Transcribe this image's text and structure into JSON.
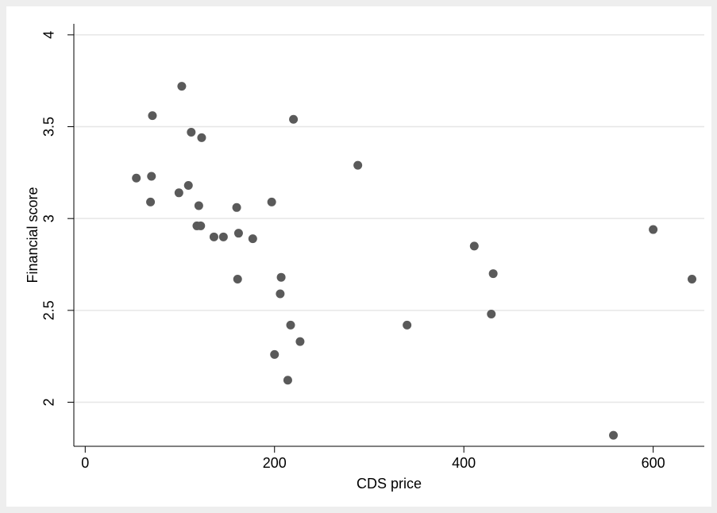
{
  "chart_data": {
    "type": "scatter",
    "x_label": "CDS price",
    "y_label": "Financial score",
    "x": [
      102,
      71,
      112,
      123,
      220,
      288,
      54,
      70,
      109,
      99,
      69,
      120,
      197,
      160,
      118,
      122,
      136,
      146,
      162,
      177,
      161,
      207,
      206,
      217,
      227,
      200,
      214,
      340,
      411,
      431,
      429,
      600,
      641,
      558
    ],
    "values": [
      3.72,
      3.56,
      3.47,
      3.44,
      3.54,
      3.29,
      3.22,
      3.23,
      3.18,
      3.14,
      3.09,
      3.07,
      3.09,
      3.06,
      2.96,
      2.96,
      2.9,
      2.9,
      2.92,
      2.89,
      2.67,
      2.68,
      2.59,
      2.42,
      2.33,
      2.26,
      2.12,
      2.42,
      2.85,
      2.7,
      2.48,
      2.94,
      2.67,
      1.82
    ],
    "color": "#5a5a5a",
    "xlim": [
      -12,
      654
    ],
    "ylim": [
      1.76,
      4.06
    ],
    "xticks": [
      0,
      200,
      400,
      600
    ],
    "yticks": [
      2,
      2.5,
      3,
      3.5,
      4
    ],
    "grid": true
  }
}
